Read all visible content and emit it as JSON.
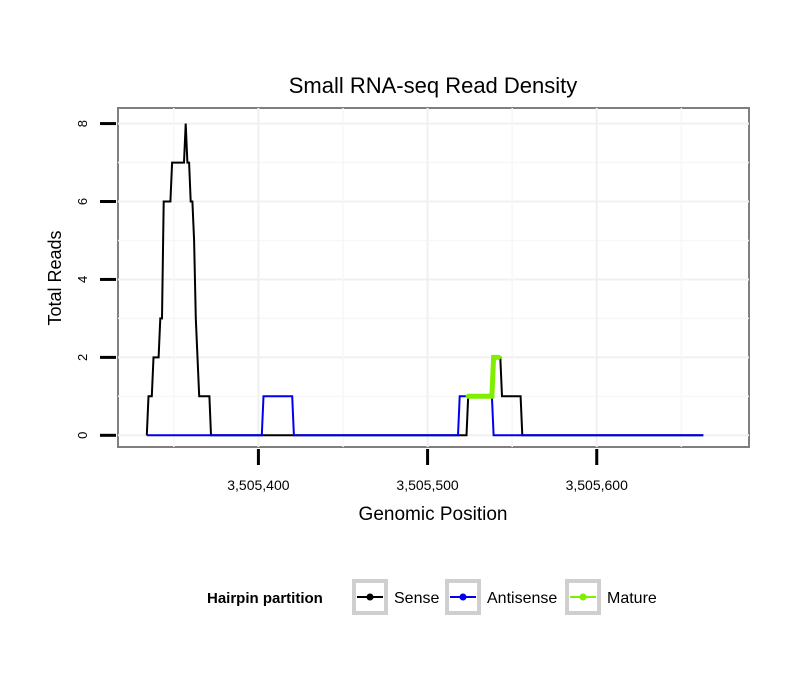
{
  "chart_data": {
    "type": "line",
    "title": "Small RNA-seq Read Density",
    "xlabel": "Genomic Position",
    "ylabel": "Total Reads",
    "xlim": [
      3505317,
      3505690
    ],
    "ylim": [
      -0.3,
      8.4
    ],
    "x_ticks": [
      3505400,
      3505500,
      3505600
    ],
    "x_tick_labels": [
      "3,505,400",
      "3,505,500",
      "3,505,600"
    ],
    "y_ticks": [
      0,
      2,
      4,
      6,
      8
    ],
    "y_tick_labels": [
      "0",
      "2",
      "4",
      "6",
      "8"
    ],
    "grid": true,
    "legend_title": "Hairpin partition",
    "legend_position": "bottom",
    "series": [
      {
        "name": "Sense",
        "color": "#000000",
        "points": [
          [
            3505334,
            0
          ],
          [
            3505335,
            1
          ],
          [
            3505337,
            1
          ],
          [
            3505338,
            2
          ],
          [
            3505341,
            2
          ],
          [
            3505342,
            3
          ],
          [
            3505343,
            3
          ],
          [
            3505344,
            6
          ],
          [
            3505348,
            6
          ],
          [
            3505349,
            7
          ],
          [
            3505356,
            7
          ],
          [
            3505357,
            8
          ],
          [
            3505358,
            7
          ],
          [
            3505359,
            7
          ],
          [
            3505360,
            6
          ],
          [
            3505361,
            6
          ],
          [
            3505362,
            5
          ],
          [
            3505363,
            3
          ],
          [
            3505364,
            2
          ],
          [
            3505365,
            1
          ],
          [
            3505371,
            1
          ],
          [
            3505372,
            0
          ],
          [
            3505523,
            0
          ],
          [
            3505524,
            1
          ],
          [
            3505538,
            1
          ],
          [
            3505539,
            2
          ],
          [
            3505543,
            2
          ],
          [
            3505544,
            1
          ],
          [
            3505555,
            1
          ],
          [
            3505556,
            0
          ],
          [
            3505663,
            0
          ]
        ]
      },
      {
        "name": "Antisense",
        "color": "#0000ee",
        "points": [
          [
            3505334,
            0
          ],
          [
            3505402,
            0
          ],
          [
            3505403,
            1
          ],
          [
            3505420,
            1
          ],
          [
            3505421,
            0
          ],
          [
            3505518,
            0
          ],
          [
            3505519,
            1
          ],
          [
            3505538,
            1
          ],
          [
            3505539,
            0
          ],
          [
            3505663,
            0
          ]
        ]
      },
      {
        "name": "Mature",
        "color": "#7fee00",
        "points": [
          [
            3505524,
            1
          ],
          [
            3505538,
            1
          ],
          [
            3505539,
            2
          ],
          [
            3505542,
            2
          ]
        ]
      }
    ]
  }
}
